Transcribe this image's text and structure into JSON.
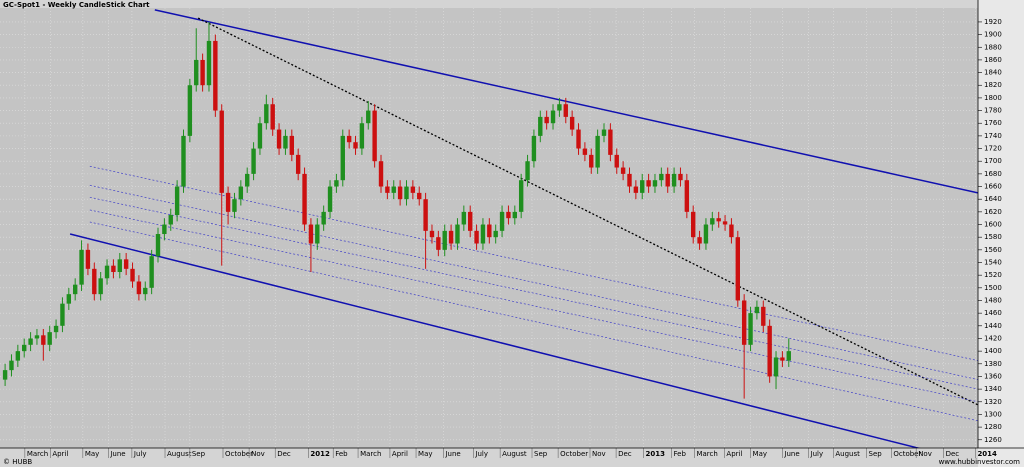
{
  "chart_data": {
    "type": "candlestick",
    "title": "GC-Spot1 - Weekly CandleStick Chart",
    "source": "© HUBB",
    "footer": "www.hubbinvestor.com",
    "x": [
      0,
      1,
      2,
      3,
      4,
      5,
      6,
      7,
      8,
      9,
      10,
      11,
      12,
      13,
      14,
      15,
      16,
      17,
      18,
      19,
      20,
      21,
      22,
      23,
      24,
      25,
      26,
      27,
      28,
      29,
      30,
      31,
      32,
      33,
      34,
      35,
      36,
      37,
      38,
      39,
      40,
      41,
      42,
      43,
      44,
      45,
      46,
      47,
      48,
      49,
      50,
      51,
      52,
      53,
      54,
      55,
      56,
      57,
      58,
      59,
      60,
      61,
      62,
      63,
      64,
      65,
      66,
      67,
      68,
      69,
      70,
      71,
      72,
      73,
      74,
      75,
      76,
      77,
      78,
      79,
      80,
      81,
      82,
      83,
      84,
      85,
      86,
      87,
      88,
      89,
      90,
      91,
      92,
      93,
      94,
      95,
      96,
      97,
      98,
      99,
      100,
      101,
      102,
      103,
      104,
      105,
      106,
      107,
      108,
      109,
      110,
      111,
      112,
      113,
      114,
      115,
      116,
      117,
      118,
      119,
      120,
      121,
      122,
      123
    ],
    "open": [
      1355,
      1370,
      1385,
      1400,
      1410,
      1420,
      1425,
      1410,
      1430,
      1440,
      1475,
      1490,
      1505,
      1560,
      1530,
      1490,
      1515,
      1535,
      1525,
      1545,
      1530,
      1510,
      1490,
      1500,
      1550,
      1585,
      1600,
      1615,
      1660,
      1740,
      1820,
      1860,
      1820,
      1890,
      1780,
      1650,
      1620,
      1640,
      1660,
      1680,
      1720,
      1760,
      1790,
      1750,
      1720,
      1740,
      1710,
      1680,
      1600,
      1570,
      1600,
      1620,
      1660,
      1670,
      1740,
      1730,
      1720,
      1760,
      1780,
      1700,
      1660,
      1650,
      1660,
      1640,
      1660,
      1650,
      1640,
      1590,
      1580,
      1560,
      1590,
      1570,
      1600,
      1620,
      1590,
      1570,
      1600,
      1580,
      1590,
      1620,
      1610,
      1620,
      1670,
      1700,
      1740,
      1770,
      1760,
      1780,
      1790,
      1770,
      1750,
      1720,
      1710,
      1690,
      1740,
      1750,
      1710,
      1690,
      1680,
      1660,
      1650,
      1670,
      1660,
      1670,
      1680,
      1660,
      1680,
      1670,
      1620,
      1580,
      1570,
      1600,
      1610,
      1605,
      1600,
      1580,
      1480,
      1410,
      1460,
      1470,
      1440,
      1360,
      1390,
      1385
    ],
    "high": [
      1380,
      1395,
      1410,
      1420,
      1430,
      1435,
      1435,
      1440,
      1450,
      1485,
      1500,
      1515,
      1575,
      1570,
      1540,
      1525,
      1545,
      1545,
      1555,
      1555,
      1540,
      1520,
      1510,
      1560,
      1595,
      1610,
      1625,
      1670,
      1750,
      1830,
      1910,
      1870,
      1920,
      1900,
      1790,
      1660,
      1650,
      1670,
      1690,
      1730,
      1770,
      1805,
      1800,
      1760,
      1750,
      1750,
      1720,
      1690,
      1610,
      1610,
      1630,
      1670,
      1680,
      1750,
      1750,
      1740,
      1770,
      1795,
      1790,
      1710,
      1670,
      1670,
      1670,
      1670,
      1670,
      1660,
      1650,
      1600,
      1590,
      1600,
      1600,
      1610,
      1630,
      1630,
      1600,
      1610,
      1610,
      1600,
      1630,
      1630,
      1630,
      1680,
      1710,
      1750,
      1780,
      1780,
      1790,
      1800,
      1800,
      1780,
      1760,
      1730,
      1720,
      1750,
      1760,
      1760,
      1720,
      1700,
      1690,
      1670,
      1680,
      1680,
      1680,
      1690,
      1690,
      1690,
      1690,
      1680,
      1630,
      1590,
      1610,
      1620,
      1620,
      1615,
      1610,
      1590,
      1490,
      1470,
      1480,
      1480,
      1450,
      1400,
      1400,
      1420
    ],
    "low": [
      1345,
      1360,
      1375,
      1390,
      1400,
      1410,
      1385,
      1400,
      1420,
      1430,
      1465,
      1480,
      1495,
      1520,
      1480,
      1480,
      1505,
      1515,
      1515,
      1520,
      1500,
      1480,
      1480,
      1490,
      1540,
      1575,
      1590,
      1605,
      1650,
      1730,
      1810,
      1810,
      1810,
      1770,
      1535,
      1600,
      1610,
      1630,
      1650,
      1670,
      1710,
      1750,
      1740,
      1710,
      1710,
      1700,
      1670,
      1590,
      1525,
      1560,
      1590,
      1610,
      1650,
      1660,
      1720,
      1710,
      1710,
      1750,
      1690,
      1650,
      1640,
      1640,
      1630,
      1630,
      1640,
      1630,
      1530,
      1570,
      1550,
      1550,
      1560,
      1560,
      1590,
      1580,
      1560,
      1560,
      1570,
      1570,
      1580,
      1600,
      1600,
      1610,
      1660,
      1690,
      1730,
      1750,
      1750,
      1770,
      1760,
      1740,
      1710,
      1700,
      1680,
      1680,
      1730,
      1700,
      1680,
      1670,
      1650,
      1640,
      1640,
      1650,
      1650,
      1660,
      1650,
      1650,
      1660,
      1610,
      1570,
      1560,
      1560,
      1590,
      1595,
      1590,
      1570,
      1470,
      1325,
      1400,
      1450,
      1430,
      1350,
      1340,
      1375,
      1375
    ],
    "close": [
      1370,
      1385,
      1400,
      1410,
      1420,
      1425,
      1410,
      1430,
      1440,
      1475,
      1490,
      1505,
      1560,
      1530,
      1490,
      1515,
      1535,
      1525,
      1545,
      1530,
      1510,
      1490,
      1500,
      1550,
      1585,
      1600,
      1615,
      1660,
      1740,
      1820,
      1860,
      1820,
      1890,
      1780,
      1650,
      1620,
      1640,
      1660,
      1680,
      1720,
      1760,
      1790,
      1750,
      1720,
      1740,
      1710,
      1680,
      1600,
      1570,
      1600,
      1620,
      1660,
      1670,
      1740,
      1730,
      1720,
      1760,
      1780,
      1700,
      1660,
      1650,
      1660,
      1640,
      1660,
      1650,
      1640,
      1590,
      1580,
      1560,
      1590,
      1570,
      1600,
      1620,
      1590,
      1570,
      1600,
      1580,
      1590,
      1620,
      1610,
      1620,
      1670,
      1700,
      1740,
      1770,
      1760,
      1780,
      1790,
      1770,
      1750,
      1720,
      1710,
      1690,
      1740,
      1750,
      1710,
      1690,
      1680,
      1660,
      1650,
      1670,
      1660,
      1670,
      1680,
      1660,
      1680,
      1670,
      1620,
      1580,
      1570,
      1600,
      1610,
      1605,
      1600,
      1580,
      1480,
      1410,
      1460,
      1470,
      1440,
      1360,
      1390,
      1385,
      1400
    ],
    "up_color": "#1f8f1f",
    "down_color": "#cc1010",
    "lines": [
      {
        "x": [
          23.5,
          152.7
        ],
        "y": [
          1939,
          1650
        ],
        "color": "#1010b0",
        "style": "solid"
      },
      {
        "x": [
          10.2,
          152.7
        ],
        "y": [
          1585,
          1223
        ],
        "color": "#1010b0",
        "style": "solid"
      },
      {
        "x": [
          30.3,
          152.7
        ],
        "y": [
          1926,
          1315
        ],
        "color": "#000000",
        "style": "dotted"
      },
      {
        "x": [
          13.3,
          152.7
        ],
        "y": [
          1692,
          1385
        ],
        "color": "#4040c8",
        "style": "dotted"
      },
      {
        "x": [
          13.3,
          152.7
        ],
        "y": [
          1662,
          1355
        ],
        "color": "#4040c8",
        "style": "dotted"
      },
      {
        "x": [
          13.3,
          152.7
        ],
        "y": [
          1643,
          1340
        ],
        "color": "#4040c8",
        "style": "dotted"
      },
      {
        "x": [
          13.3,
          152.7
        ],
        "y": [
          1623,
          1320
        ],
        "color": "#4040c8",
        "style": "dotted"
      },
      {
        "x": [
          13.3,
          152.7
        ],
        "y": [
          1604,
          1290
        ],
        "color": "#4040c8",
        "style": "dotted"
      }
    ],
    "xlim": [
      -0.8,
      152.7
    ],
    "ylim": [
      1247,
      1942
    ],
    "yticks": [
      1260,
      1280,
      1300,
      1320,
      1340,
      1360,
      1380,
      1400,
      1420,
      1440,
      1460,
      1480,
      1500,
      1520,
      1540,
      1560,
      1580,
      1600,
      1620,
      1640,
      1660,
      1680,
      1700,
      1720,
      1740,
      1760,
      1780,
      1800,
      1820,
      1840,
      1860,
      1880,
      1900,
      1920
    ],
    "xticks": [
      {
        "value": 3.1,
        "label": "March"
      },
      {
        "value": 7.1,
        "label": "April"
      },
      {
        "value": 12.2,
        "label": "May"
      },
      {
        "value": 16.2,
        "label": "June"
      },
      {
        "value": 19.9,
        "label": "July"
      },
      {
        "value": 25.1,
        "label": "August"
      },
      {
        "value": 29.0,
        "label": "Sep"
      },
      {
        "value": 34.2,
        "label": "October"
      },
      {
        "value": 38.3,
        "label": "Nov"
      },
      {
        "value": 42.4,
        "label": "Dec"
      },
      {
        "value": 47.6,
        "label": "2012"
      },
      {
        "value": 51.5,
        "label": "Feb"
      },
      {
        "value": 55.4,
        "label": "March"
      },
      {
        "value": 60.4,
        "label": "April"
      },
      {
        "value": 64.5,
        "label": "May"
      },
      {
        "value": 68.8,
        "label": "June"
      },
      {
        "value": 73.5,
        "label": "July"
      },
      {
        "value": 77.7,
        "label": "August"
      },
      {
        "value": 82.7,
        "label": "Sep"
      },
      {
        "value": 86.8,
        "label": "October"
      },
      {
        "value": 91.8,
        "label": "Nov"
      },
      {
        "value": 95.9,
        "label": "Dec"
      },
      {
        "value": 100.2,
        "label": "2013"
      },
      {
        "value": 104.6,
        "label": "Feb"
      },
      {
        "value": 108.2,
        "label": "March"
      },
      {
        "value": 112.9,
        "label": "April"
      },
      {
        "value": 117.0,
        "label": "May"
      },
      {
        "value": 122.0,
        "label": "June"
      },
      {
        "value": 126.1,
        "label": "July"
      },
      {
        "value": 130.0,
        "label": "August"
      },
      {
        "value": 135.2,
        "label": "Sep"
      },
      {
        "value": 139.1,
        "label": "October"
      },
      {
        "value": 143.0,
        "label": "Nov"
      },
      {
        "value": 147.3,
        "label": "Dec"
      },
      {
        "value": 152.3,
        "label": "2014"
      }
    ],
    "grid": true
  }
}
